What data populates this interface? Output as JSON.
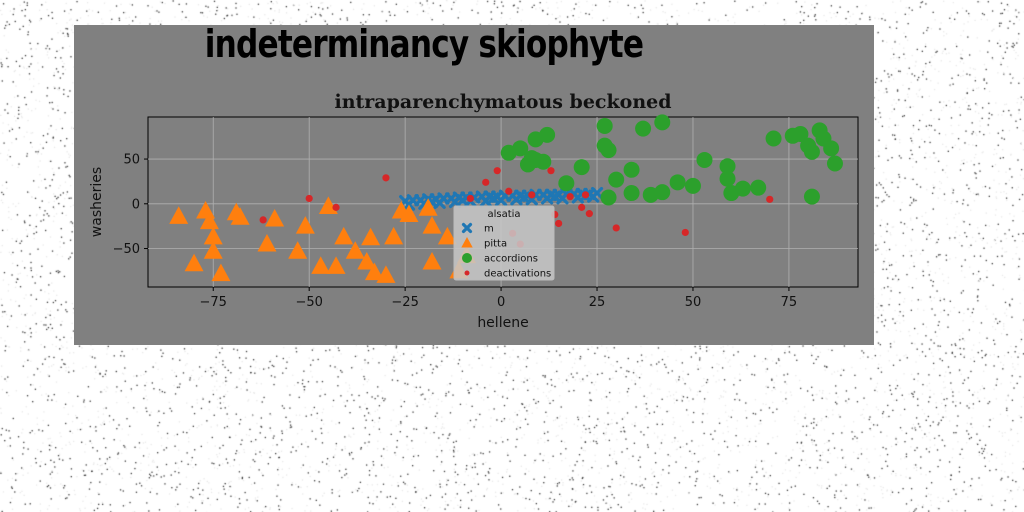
{
  "figure_title": "indeterminancy skiophyte",
  "chart_data": {
    "type": "scatter",
    "title": "intraparenchymatous beckoned",
    "xlabel": "hellene",
    "ylabel": "washeries",
    "xlim": [
      -92,
      93
    ],
    "ylim": [
      -93,
      97
    ],
    "xticks": [
      -75,
      -50,
      -25,
      0,
      25,
      50,
      75
    ],
    "xtick_labels": [
      "−75",
      "−50",
      "−25",
      "0",
      "25",
      "50",
      "75"
    ],
    "yticks": [
      -50,
      0,
      50
    ],
    "ytick_labels": [
      "−50",
      "0",
      "50"
    ],
    "grid": true,
    "legend": {
      "title": "alsatia",
      "placement": "lower-center"
    },
    "series": [
      {
        "name": "m",
        "marker": "x",
        "color": "#1f77b4",
        "points": [
          [
            -25,
            3
          ],
          [
            -23,
            4
          ],
          [
            -21,
            4
          ],
          [
            -19,
            5
          ],
          [
            -17,
            5
          ],
          [
            -15,
            6
          ],
          [
            -13,
            6
          ],
          [
            -11,
            7
          ],
          [
            -9,
            7
          ],
          [
            -7,
            7
          ],
          [
            -5,
            8
          ],
          [
            -3,
            8
          ],
          [
            -1,
            8
          ],
          [
            1,
            9
          ],
          [
            3,
            9
          ],
          [
            5,
            9
          ],
          [
            7,
            9
          ],
          [
            9,
            10
          ],
          [
            11,
            10
          ],
          [
            13,
            10
          ],
          [
            15,
            10
          ],
          [
            17,
            11
          ],
          [
            19,
            11
          ],
          [
            21,
            11
          ],
          [
            23,
            11
          ],
          [
            25,
            12
          ],
          [
            -24,
            -1
          ],
          [
            -20,
            0
          ],
          [
            -16,
            1
          ],
          [
            -12,
            2
          ],
          [
            -8,
            3
          ],
          [
            -4,
            3
          ],
          [
            0,
            4
          ],
          [
            4,
            5
          ],
          [
            8,
            5
          ],
          [
            12,
            6
          ],
          [
            16,
            6
          ],
          [
            20,
            7
          ],
          [
            24,
            8
          ],
          [
            -18,
            2
          ],
          [
            -10,
            4
          ],
          [
            -2,
            6
          ],
          [
            6,
            7
          ],
          [
            14,
            8
          ],
          [
            22,
            9
          ]
        ]
      },
      {
        "name": "pitta",
        "marker": "triangle",
        "color": "#ff7f0e",
        "points": [
          [
            -84,
            -14
          ],
          [
            -80,
            -67
          ],
          [
            -77,
            -8
          ],
          [
            -76,
            -20
          ],
          [
            -75,
            -37
          ],
          [
            -75,
            -53
          ],
          [
            -73,
            -78
          ],
          [
            -69,
            -10
          ],
          [
            -68,
            -15
          ],
          [
            -61,
            -45
          ],
          [
            -59,
            -17
          ],
          [
            -53,
            -53
          ],
          [
            -51,
            -25
          ],
          [
            -47,
            -70
          ],
          [
            -45,
            -3
          ],
          [
            -43,
            -70
          ],
          [
            -41,
            -37
          ],
          [
            -38,
            -53
          ],
          [
            -35,
            -65
          ],
          [
            -34,
            -38
          ],
          [
            -33,
            -77
          ],
          [
            -30,
            -80
          ],
          [
            -28,
            -37
          ],
          [
            -26,
            -8
          ],
          [
            -24,
            -12
          ],
          [
            -19,
            -5
          ],
          [
            -18,
            -25
          ],
          [
            -18,
            -65
          ],
          [
            -14,
            -37
          ],
          [
            -11,
            -75
          ],
          [
            -9,
            -58
          ]
        ]
      },
      {
        "name": "accordions",
        "marker": "circle",
        "color": "#2ca02c",
        "points": [
          [
            2,
            57
          ],
          [
            5,
            62
          ],
          [
            7,
            44
          ],
          [
            8,
            51
          ],
          [
            9,
            49
          ],
          [
            9,
            72
          ],
          [
            11,
            47
          ],
          [
            12,
            77
          ],
          [
            17,
            23
          ],
          [
            21,
            41
          ],
          [
            27,
            87
          ],
          [
            27,
            65
          ],
          [
            28,
            60
          ],
          [
            28,
            7
          ],
          [
            30,
            27
          ],
          [
            34,
            38
          ],
          [
            34,
            12
          ],
          [
            37,
            84
          ],
          [
            39,
            10
          ],
          [
            42,
            13
          ],
          [
            42,
            91
          ],
          [
            46,
            24
          ],
          [
            50,
            20
          ],
          [
            53,
            49
          ],
          [
            59,
            42
          ],
          [
            59,
            28
          ],
          [
            60,
            12
          ],
          [
            63,
            17
          ],
          [
            67,
            18
          ],
          [
            71,
            73
          ],
          [
            76,
            76
          ],
          [
            78,
            78
          ],
          [
            80,
            65
          ],
          [
            81,
            58
          ],
          [
            83,
            82
          ],
          [
            84,
            73
          ],
          [
            86,
            62
          ],
          [
            87,
            45
          ],
          [
            81,
            8
          ]
        ]
      },
      {
        "name": "deactivations",
        "marker": "dot",
        "color": "#d62728",
        "points": [
          [
            -62,
            -18
          ],
          [
            -50,
            6
          ],
          [
            -43,
            -4
          ],
          [
            -30,
            29
          ],
          [
            -8,
            6
          ],
          [
            -4,
            24
          ],
          [
            -1,
            37
          ],
          [
            2,
            14
          ],
          [
            3,
            -33
          ],
          [
            5,
            -45
          ],
          [
            8,
            10
          ],
          [
            13,
            37
          ],
          [
            14,
            -12
          ],
          [
            15,
            -22
          ],
          [
            18,
            8
          ],
          [
            21,
            -4
          ],
          [
            22,
            10
          ],
          [
            23,
            -11
          ],
          [
            30,
            -27
          ],
          [
            48,
            -32
          ],
          [
            70,
            5
          ]
        ]
      }
    ]
  }
}
